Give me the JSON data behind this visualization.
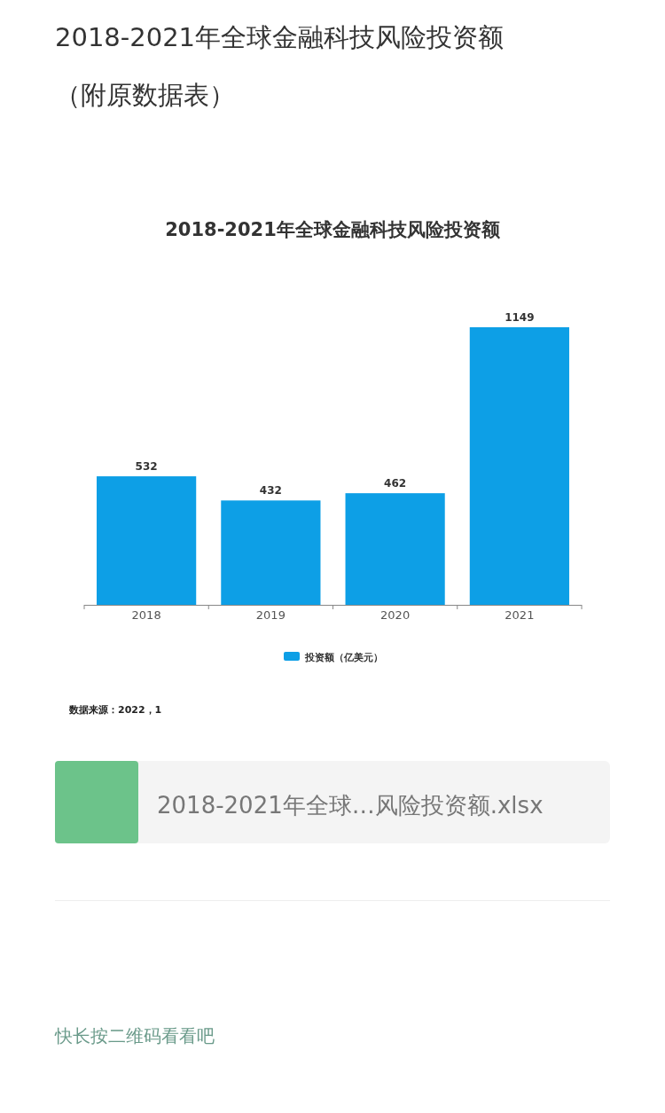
{
  "chart_data": {
    "type": "bar",
    "title": "2018-2021年全球金融科技风险投资额",
    "categories": [
      "2018",
      "2019",
      "2020",
      "2021"
    ],
    "series": [
      {
        "name": "投资额（亿美元）",
        "color": "#0d9fe6",
        "values": [
          532,
          432,
          462,
          1149
        ]
      }
    ],
    "data_labels": true,
    "legend": "bottom",
    "annotations": [
      "2018-2021年全球金融科技风险投资额（附原数据表）",
      "数据来源：2022，1",
      "2018-2021年全球…风险投资额.xlsx",
      "快长按二维码看看吧"
    ]
  }
}
